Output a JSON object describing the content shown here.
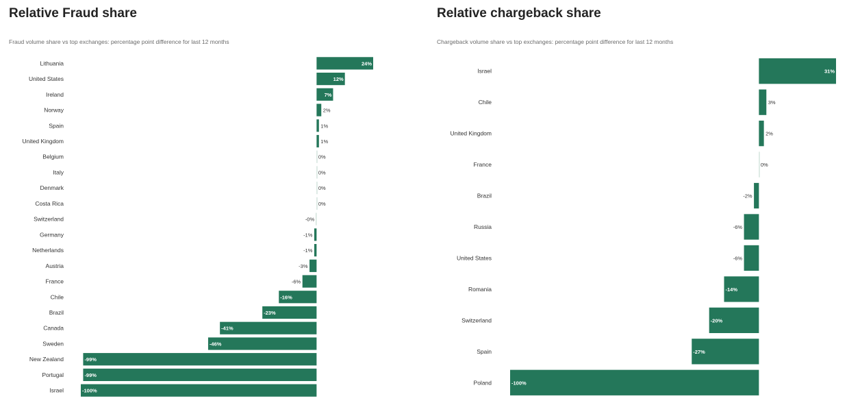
{
  "colors": {
    "bar": "#24775a",
    "zero_bar": "#c9ddd4",
    "label_inside": "#ffffff",
    "label_outside": "#333333"
  },
  "chart_data": [
    {
      "type": "bar",
      "orientation": "horizontal",
      "title": "Relative Fraud share",
      "subtitle": "Fraud volume share vs top exchanges: percentage point difference for last 12 months",
      "categories": [
        "Lithuania",
        "United States",
        "Ireland",
        "Norway",
        "Spain",
        "United Kingdom",
        "Belgium",
        "Italy",
        "Denmark",
        "Costa Rica",
        "Switzerland",
        "Germany",
        "Netherlands",
        "Austria",
        "France",
        "Chile",
        "Brazil",
        "Canada",
        "Sweden",
        "New Zealand",
        "Portugal",
        "Israel"
      ],
      "values": [
        24,
        12,
        7,
        2,
        1,
        1,
        0,
        0,
        0,
        0,
        -0.2,
        -1,
        -1,
        -3,
        -6,
        -16,
        -23,
        -41,
        -46,
        -99,
        -99,
        -100
      ],
      "labels": [
        "24%",
        "12%",
        "7%",
        "2%",
        "1%",
        "1%",
        "0%",
        "0%",
        "0%",
        "0%",
        "-0%",
        "-1%",
        "-1%",
        "-3%",
        "-6%",
        "-16%",
        "-23%",
        "-41%",
        "-46%",
        "-99%",
        "-99%",
        "-100%"
      ],
      "xlim": [
        -100,
        24
      ],
      "legend": "none",
      "grid": false
    },
    {
      "type": "bar",
      "orientation": "horizontal",
      "title": "Relative chargeback share",
      "subtitle": "Chargeback volume share vs top exchanges: percentage point difference for last 12 months",
      "categories": [
        "Israel",
        "Chile",
        "United Kingdom",
        "France",
        "Brazil",
        "Russia",
        "United States",
        "Romania",
        "Switzerland",
        "Spain",
        "Poland"
      ],
      "values": [
        31,
        3,
        2,
        0,
        -2,
        -6,
        -6,
        -14,
        -20,
        -27,
        -100
      ],
      "labels": [
        "31%",
        "3%",
        "2%",
        "0%",
        "-2%",
        "-6%",
        "-6%",
        "-14%",
        "-20%",
        "-27%",
        "-100%"
      ],
      "xlim": [
        -100,
        31
      ],
      "legend": "none",
      "grid": false
    }
  ]
}
